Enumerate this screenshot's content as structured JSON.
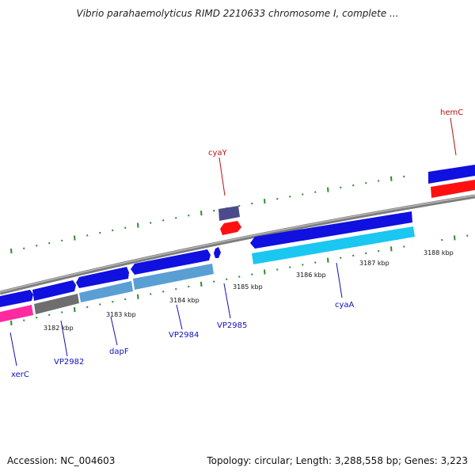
{
  "title": "Vibrio parahaemolyticus RIMD 2210633 chromosome I, complete ...",
  "footer": {
    "accession": "Accession: NC_004603",
    "summary": "Topology: circular; Length: 3,288,558 bp; Genes: 3,223"
  },
  "colors": {
    "backbone": "#8c8c8c",
    "tick": "#2e8b2e",
    "forward_gene": "#1010e0",
    "forward_cds": "#5a9fd4",
    "reverse_gene": "#ff1010",
    "reverse_cds_top": "#4b4b8c",
    "cyaA_cds": "#19c7f0",
    "xerC_cds": "#ff2aa0",
    "gray_cds": "#6e6e6e",
    "label_blue": "#1010c0",
    "label_red": "#c01010"
  },
  "kbp_ticks": [
    "3182 kbp",
    "3183 kbp",
    "3184 kbp",
    "3185 kbp",
    "3186 kbp",
    "3187 kbp",
    "3188 kbp"
  ],
  "genes": [
    {
      "name": "xerC",
      "strand": "forward"
    },
    {
      "name": "VP2982",
      "strand": "forward"
    },
    {
      "name": "dapF",
      "strand": "forward"
    },
    {
      "name": "VP2984",
      "strand": "forward"
    },
    {
      "name": "VP2985",
      "strand": "forward"
    },
    {
      "name": "cyaA",
      "strand": "forward"
    },
    {
      "name": "cyaY",
      "strand": "reverse"
    },
    {
      "name": "hemC",
      "strand": "reverse"
    }
  ]
}
